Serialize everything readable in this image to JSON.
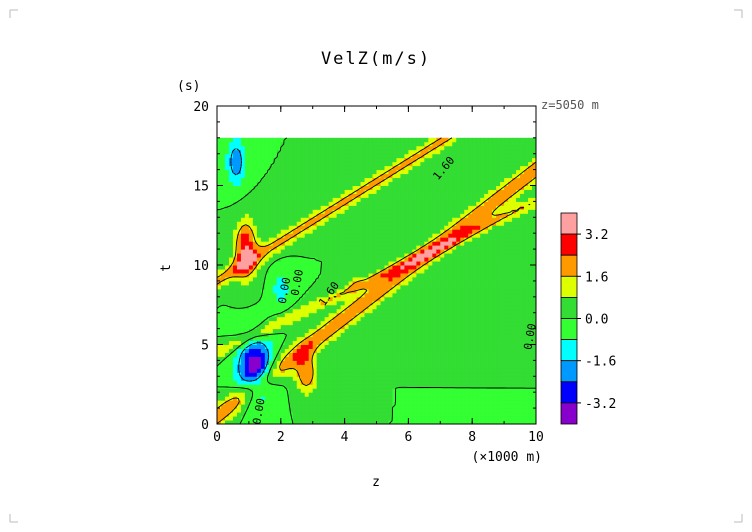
{
  "chart_data": {
    "type": "heatmap",
    "title": "VelZ(m/s)",
    "xlabel": "z",
    "x_unit": "(×1000 m)",
    "ylabel": "t",
    "y_unit": "(s)",
    "annotation": "z=5050 m",
    "xlim": [
      0,
      10
    ],
    "ylim": [
      0,
      20
    ],
    "x_ticks": [
      "0",
      "2",
      "4",
      "6",
      "8",
      "10"
    ],
    "y_ticks": [
      "0",
      "5",
      "10",
      "15",
      "20"
    ],
    "t_max_data": 18,
    "colorbar": {
      "tick_labels": [
        "3.2",
        "1.6",
        "0.0",
        "-1.6",
        "-3.2"
      ],
      "levels": [
        {
          "min": 3.2,
          "color": "#ffa0a0"
        },
        {
          "min": 2.4,
          "color": "#ff0000"
        },
        {
          "min": 1.6,
          "color": "#ff9900"
        },
        {
          "min": 0.8,
          "color": "#ddff00"
        },
        {
          "min": 0.0,
          "color": "#33dd33"
        },
        {
          "min": -0.8,
          "color": "#33ff33"
        },
        {
          "min": -1.6,
          "color": "#00ffff"
        },
        {
          "min": -2.4,
          "color": "#0099ff"
        },
        {
          "min": -3.2,
          "color": "#0000ff"
        },
        {
          "min": -4.0,
          "color": "#8800cc"
        }
      ]
    },
    "contour_labels": [
      "1.60",
      "1.60",
      "0.00",
      "0.00",
      "0.00",
      "0.00"
    ]
  }
}
